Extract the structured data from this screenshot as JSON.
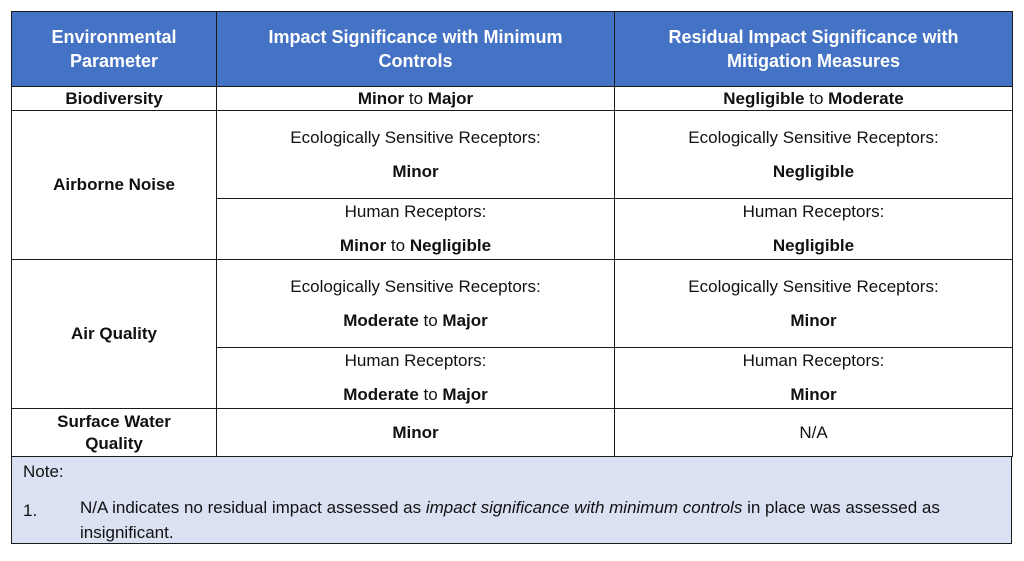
{
  "headers": [
    "Environmental Parameter",
    "Impact Significance with Minimum Controls",
    "Residual Impact Significance with Mitigation Measures"
  ],
  "rows": {
    "biodiversity": {
      "param": "Biodiversity",
      "impact": {
        "a": "Minor",
        "mid": " to ",
        "b": "Major"
      },
      "residual": {
        "a": "Negligible",
        "mid": " to ",
        "b": "Moderate"
      }
    },
    "airborne_noise": {
      "param": "Airborne Noise",
      "eco_label": "Ecologically Sensitive Receptors:",
      "human_label": "Human Receptors:",
      "impact_eco": "Minor",
      "residual_eco": "Negligible",
      "impact_human": {
        "a": "Minor",
        "mid": " to ",
        "b": "Negligible"
      },
      "residual_human": "Negligible"
    },
    "air_quality": {
      "param": "Air Quality",
      "eco_label": "Ecologically Sensitive Receptors:",
      "human_label": "Human Receptors:",
      "impact_eco": {
        "a": "Moderate",
        "mid": " to ",
        "b": "Major"
      },
      "residual_eco": "Minor",
      "impact_human": {
        "a": "Moderate",
        "mid": " to ",
        "b": "Major"
      },
      "residual_human": "Minor"
    },
    "surface_water": {
      "param": "Surface Water Quality",
      "impact": "Minor",
      "residual": "N/A"
    }
  },
  "note": {
    "title": "Note:",
    "number": "1.",
    "text_pre": "N/A indicates no residual impact assessed as ",
    "text_italic": "impact significance with minimum controls",
    "text_post": " in place was assessed as insignificant."
  }
}
